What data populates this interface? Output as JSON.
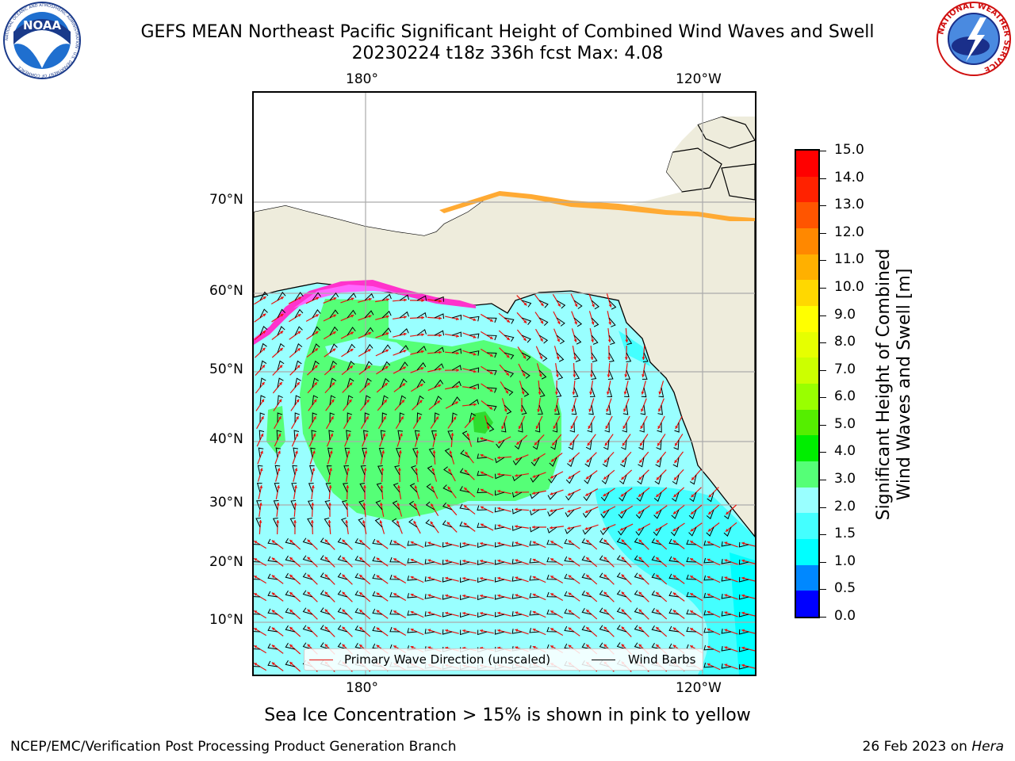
{
  "header": {
    "title_line1": "GEFS MEAN Northeast Pacific Significant Height of Combined Wind Waves and Swell",
    "title_line2": "20230224 t18z 336h fcst   Max: 4.08"
  },
  "logos": {
    "left_logo_text": "NOAA",
    "left_logo_ring_text": "NATIONAL OCEANIC AND ATMOSPHERIC ADMINISTRATION · U.S. DEPARTMENT OF COMMERCE",
    "right_logo_ring_text": "NATIONAL WEATHER SERVICE"
  },
  "map": {
    "top_lon_labels": [
      "180°",
      "120°W"
    ],
    "bottom_lon_labels": [
      "180°",
      "120°W"
    ],
    "lat_labels": [
      "70°N",
      "60°N",
      "50°N",
      "40°N",
      "30°N",
      "20°N",
      "10°N"
    ],
    "colors": {
      "land": "#eeecdc",
      "sea_base": "#99ffff",
      "sea_high": "#55ff77",
      "sea_peak": "#2edc2e",
      "sea_low": "#44ffff",
      "sea_coast": "#00ffff",
      "wave_arrow": "#e8140f",
      "wind_barb": "#000000",
      "grid": "#aaaaaa"
    }
  },
  "legend": {
    "wave_label": "Primary Wave Direction (unscaled)",
    "wind_label": "Wind Barbs"
  },
  "colorbar": {
    "label_line1": "Significant Height of Combined",
    "label_line2": "Wind Waves and Swell [m]",
    "ticks": [
      "15.0",
      "14.0",
      "13.0",
      "12.0",
      "11.0",
      "10.0",
      "9.0",
      "8.0",
      "7.0",
      "6.0",
      "5.0",
      "4.0",
      "3.0",
      "2.0",
      "1.5",
      "1.0",
      "0.5",
      "0.0"
    ],
    "colors_top_to_bottom": [
      "#ff0000",
      "#ff2200",
      "#ff5500",
      "#ff8800",
      "#ffb000",
      "#ffd800",
      "#ffff00",
      "#e6ff00",
      "#ccff00",
      "#99ff00",
      "#55ee00",
      "#00ee00",
      "#55ff77",
      "#99ffff",
      "#44ffff",
      "#00ffff",
      "#0088ff",
      "#0000ff"
    ]
  },
  "caption": "Sea Ice Concentration > 15% is shown in pink to yellow",
  "footer": {
    "left": "NCEP/EMC/Verification Post Processing Product Generation Branch",
    "date": "26 Feb 2023 on ",
    "machine": "Hera"
  }
}
